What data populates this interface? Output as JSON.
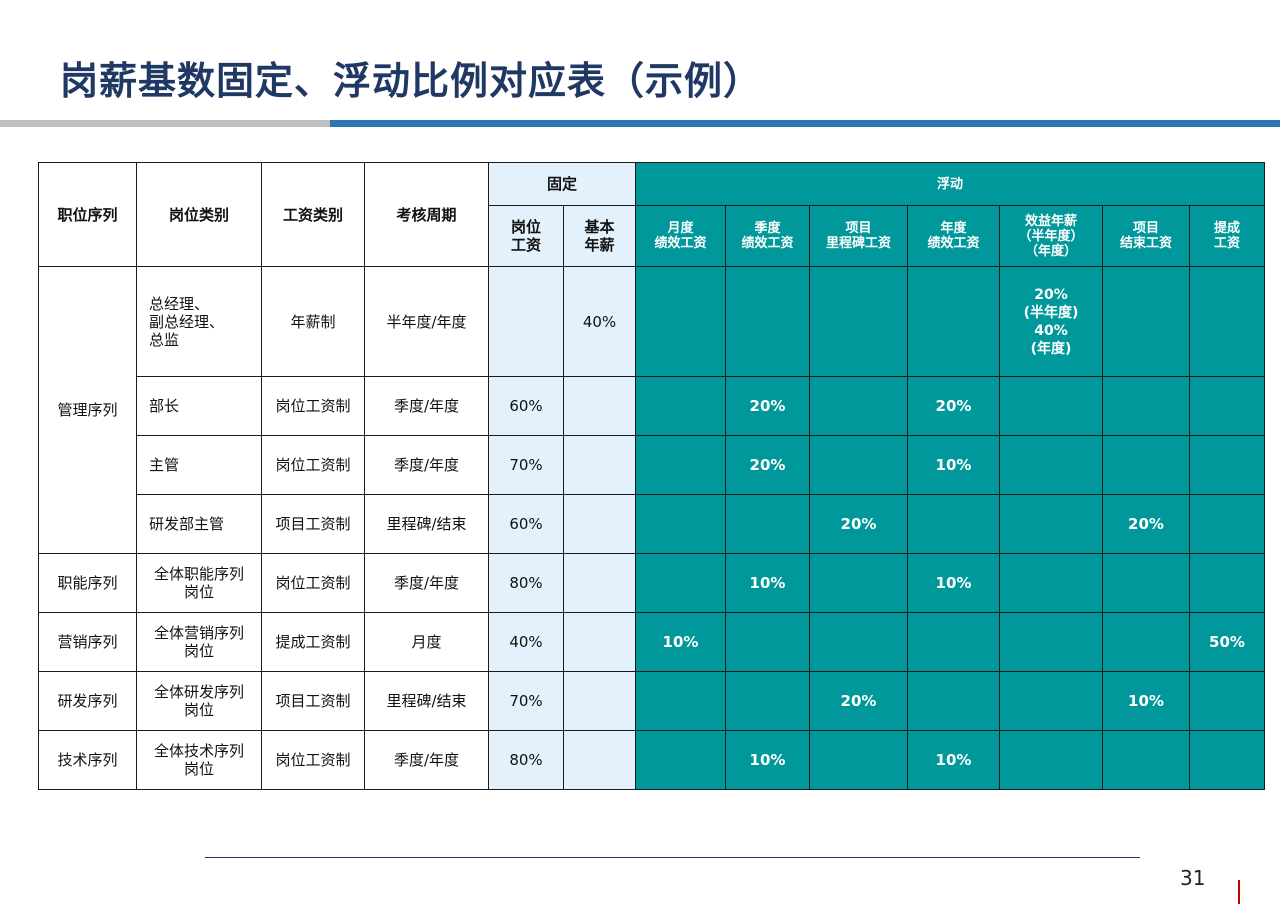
{
  "title": "岗薪基数固定、浮动比例对应表（示例）",
  "page_number": "31",
  "header": {
    "col_series": "职位序列",
    "col_category": "岗位类别",
    "col_wage_type": "工资类别",
    "col_period": "考核周期",
    "group_fixed": "固定",
    "group_float": "浮动",
    "fixed_post": "岗位\n工资",
    "fixed_base": "基本\n年薪",
    "float_month": "月度\n绩效工资",
    "float_quarter": "季度\n绩效工资",
    "float_milestone": "项目\n里程碑工资",
    "float_year": "年度\n绩效工资",
    "float_benefit": "效益年薪\n（半年度）\n（年度）",
    "float_project_end": "项目\n结束工资",
    "float_commission": "提成\n工资"
  },
  "groups": {
    "management": "管理序列",
    "function": "职能序列",
    "marketing": "营销序列",
    "rd": "研发序列",
    "tech": "技术序列"
  },
  "rows": [
    {
      "category": "总经理、\n副总经理、\n总监",
      "wage_type": "年薪制",
      "period": "半年度/年度",
      "post": "",
      "base": "40%",
      "month": "",
      "quarter": "",
      "milestone": "",
      "year": "",
      "benefit": "20%\n(半年度)\n40%\n(年度)",
      "project_end": "",
      "commission": ""
    },
    {
      "category": "部长",
      "wage_type": "岗位工资制",
      "period": "季度/年度",
      "post": "60%",
      "base": "",
      "month": "",
      "quarter": "20%",
      "milestone": "",
      "year": "20%",
      "benefit": "",
      "project_end": "",
      "commission": ""
    },
    {
      "category": "主管",
      "wage_type": "岗位工资制",
      "period": "季度/年度",
      "post": "70%",
      "base": "",
      "month": "",
      "quarter": "20%",
      "milestone": "",
      "year": "10%",
      "benefit": "",
      "project_end": "",
      "commission": ""
    },
    {
      "category": "研发部主管",
      "wage_type": "项目工资制",
      "period": "里程碑/结束",
      "post": "60%",
      "base": "",
      "month": "",
      "quarter": "",
      "milestone": "20%",
      "year": "",
      "benefit": "",
      "project_end": "20%",
      "commission": ""
    },
    {
      "category": "全体职能序列\n岗位",
      "wage_type": "岗位工资制",
      "period": "季度/年度",
      "post": "80%",
      "base": "",
      "month": "",
      "quarter": "10%",
      "milestone": "",
      "year": "10%",
      "benefit": "",
      "project_end": "",
      "commission": ""
    },
    {
      "category": "全体营销序列\n岗位",
      "wage_type": "提成工资制",
      "period": "月度",
      "post": "40%",
      "base": "",
      "month": "10%",
      "quarter": "",
      "milestone": "",
      "year": "",
      "benefit": "",
      "project_end": "",
      "commission": "50%"
    },
    {
      "category": "全体研发序列\n岗位",
      "wage_type": "项目工资制",
      "period": "里程碑/结束",
      "post": "70%",
      "base": "",
      "month": "",
      "quarter": "",
      "milestone": "20%",
      "year": "",
      "benefit": "",
      "project_end": "10%",
      "commission": ""
    },
    {
      "category": "全体技术序列\n岗位",
      "wage_type": "岗位工资制",
      "period": "季度/年度",
      "post": "80%",
      "base": "",
      "month": "",
      "quarter": "10%",
      "milestone": "",
      "year": "10%",
      "benefit": "",
      "project_end": "",
      "commission": ""
    }
  ]
}
